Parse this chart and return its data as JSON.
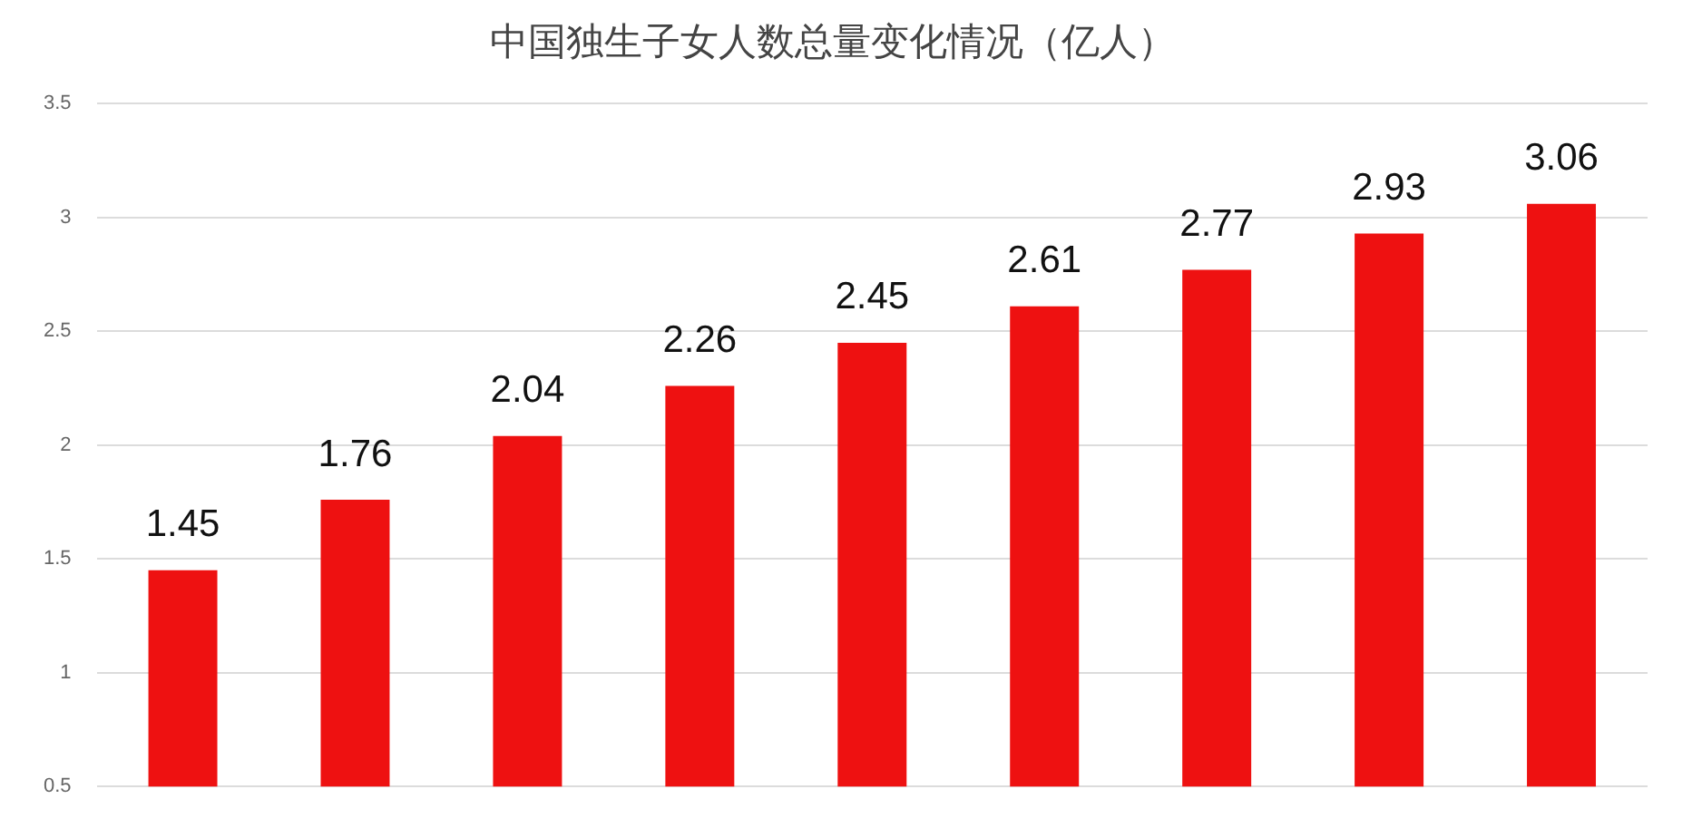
{
  "chart_data": {
    "type": "bar",
    "title": "中国独生子女人数总量变化情况（亿人）",
    "categories": [
      null,
      null,
      null,
      null,
      null,
      null,
      null,
      null,
      null
    ],
    "values": [
      1.45,
      1.76,
      2.04,
      2.26,
      2.45,
      2.61,
      2.77,
      2.93,
      3.06
    ],
    "color": "#ee1111",
    "ylim": [
      0.5,
      3.5
    ],
    "yticks": [
      0.5,
      1,
      1.5,
      2,
      2.5,
      3,
      3.5
    ],
    "grid": "y",
    "data_labels": true,
    "legend": false
  }
}
